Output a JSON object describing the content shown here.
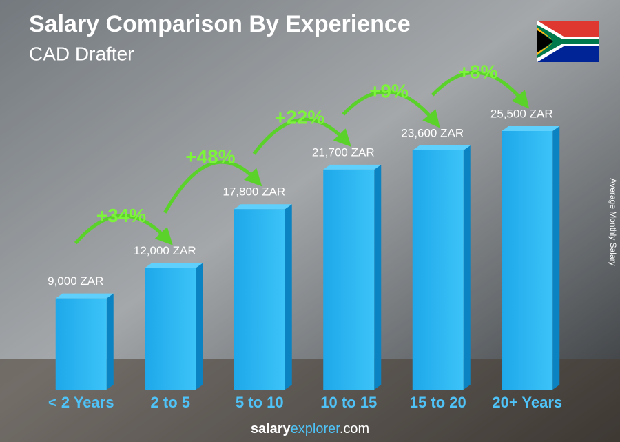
{
  "chart_data": {
    "type": "bar3d",
    "title": "Salary Comparison By Experience",
    "subtitle": "CAD Drafter",
    "y_label": "Average Monthly Salary",
    "categories": [
      "< 2 Years",
      "2 to 5",
      "5 to 10",
      "10 to 15",
      "15 to 20",
      "20+ Years"
    ],
    "values": [
      9000,
      12000,
      17800,
      21700,
      23600,
      25500
    ],
    "value_labels": [
      "9,000 ZAR",
      "12,000 ZAR",
      "17,800 ZAR",
      "21,700 ZAR",
      "23,600 ZAR",
      "25,500 ZAR"
    ],
    "increases": [
      "+34%",
      "+48%",
      "+22%",
      "+9%",
      "+8%"
    ],
    "color": "#29b6f6",
    "brand": [
      "salary",
      "explorer",
      ".com"
    ]
  }
}
